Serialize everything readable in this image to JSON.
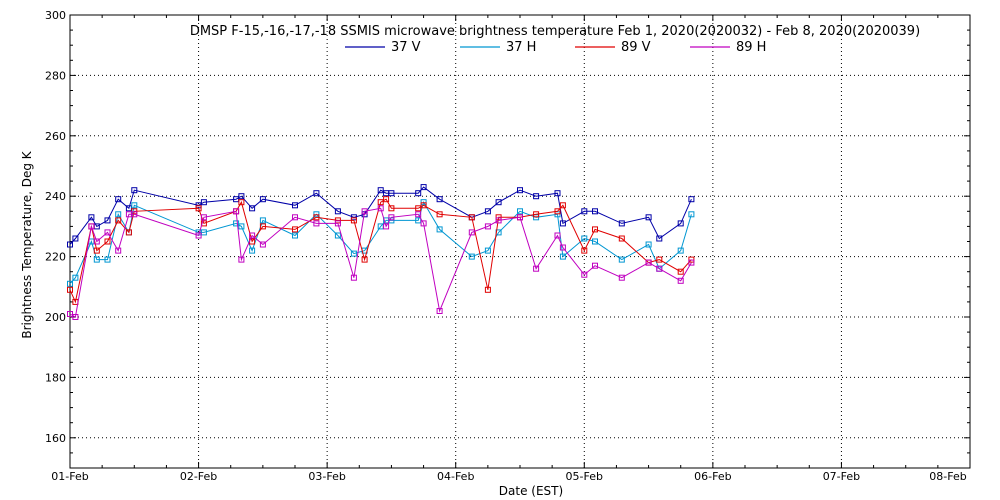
{
  "chart_data": {
    "type": "line",
    "title": "DMSP F-15,-16,-17,-18 SSMIS microwave brightness temperature Feb  1, 2020(2020032) - Feb  8, 2020(2020039)",
    "xlabel": "Date (EST)",
    "ylabel": "Brightness Temperature, Deg K",
    "xlim": [
      "2020-02-01",
      "2020-02-08"
    ],
    "ylim": [
      150,
      300
    ],
    "x_ticks": [
      "01-Feb",
      "02-Feb",
      "03-Feb",
      "04-Feb",
      "05-Feb",
      "06-Feb",
      "07-Feb",
      "08-Feb"
    ],
    "y_ticks": [
      160,
      180,
      200,
      220,
      240,
      260,
      280,
      300
    ],
    "grid": true,
    "legend": "top-center",
    "series": [
      {
        "name": "37 V",
        "color": "#0000a8",
        "x": [
          "2020-02-01 00:00",
          "2020-02-01 01:00",
          "2020-02-01 04:00",
          "2020-02-01 05:00",
          "2020-02-01 07:00",
          "2020-02-01 09:00",
          "2020-02-01 11:00",
          "2020-02-01 12:00",
          "2020-02-02 00:00",
          "2020-02-02 01:00",
          "2020-02-02 07:00",
          "2020-02-02 08:00",
          "2020-02-02 10:00",
          "2020-02-02 12:00",
          "2020-02-02 18:00",
          "2020-02-02 22:00",
          "2020-02-03 02:00",
          "2020-02-03 05:00",
          "2020-02-03 07:00",
          "2020-02-03 10:00",
          "2020-02-03 11:00",
          "2020-02-03 12:00",
          "2020-02-03 17:00",
          "2020-02-03 18:00",
          "2020-02-03 21:00",
          "2020-02-04 03:00",
          "2020-02-04 06:00",
          "2020-02-04 08:00",
          "2020-02-04 12:00",
          "2020-02-04 15:00",
          "2020-02-04 19:00",
          "2020-02-04 20:00",
          "2020-02-05 00:00",
          "2020-02-05 02:00",
          "2020-02-05 07:00",
          "2020-02-05 12:00",
          "2020-02-05 14:00",
          "2020-02-05 18:00",
          "2020-02-05 20:00"
        ],
        "y": [
          224,
          226,
          233,
          230,
          232,
          239,
          236,
          242,
          237,
          238,
          239,
          240,
          236,
          239,
          237,
          241,
          235,
          233,
          234,
          242,
          241,
          241,
          241,
          243,
          239,
          233,
          235,
          238,
          242,
          240,
          241,
          231,
          235,
          235,
          231,
          233,
          226,
          231,
          239
        ]
      },
      {
        "name": "37 H",
        "color": "#0096d2",
        "x": [
          "2020-02-01 00:00",
          "2020-02-01 01:00",
          "2020-02-01 04:00",
          "2020-02-01 05:00",
          "2020-02-01 07:00",
          "2020-02-01 09:00",
          "2020-02-01 11:00",
          "2020-02-01 12:00",
          "2020-02-02 00:00",
          "2020-02-02 01:00",
          "2020-02-02 07:00",
          "2020-02-02 08:00",
          "2020-02-02 10:00",
          "2020-02-02 12:00",
          "2020-02-02 18:00",
          "2020-02-02 22:00",
          "2020-02-03 02:00",
          "2020-02-03 05:00",
          "2020-02-03 07:00",
          "2020-02-03 10:00",
          "2020-02-03 11:00",
          "2020-02-03 12:00",
          "2020-02-03 17:00",
          "2020-02-03 18:00",
          "2020-02-03 21:00",
          "2020-02-04 03:00",
          "2020-02-04 06:00",
          "2020-02-04 08:00",
          "2020-02-04 12:00",
          "2020-02-04 15:00",
          "2020-02-04 19:00",
          "2020-02-04 20:00",
          "2020-02-05 00:00",
          "2020-02-05 02:00",
          "2020-02-05 07:00",
          "2020-02-05 12:00",
          "2020-02-05 14:00",
          "2020-02-05 18:00",
          "2020-02-05 20:00"
        ],
        "y": [
          211,
          213,
          225,
          219,
          219,
          234,
          228,
          237,
          228,
          228,
          231,
          230,
          222,
          232,
          227,
          234,
          227,
          221,
          222,
          230,
          232,
          232,
          232,
          238,
          229,
          220,
          222,
          228,
          235,
          233,
          234,
          220,
          226,
          225,
          219,
          224,
          216,
          222,
          234
        ]
      },
      {
        "name": "89 V",
        "color": "#e00000",
        "x": [
          "2020-02-01 00:00",
          "2020-02-01 01:00",
          "2020-02-01 04:00",
          "2020-02-01 05:00",
          "2020-02-01 07:00",
          "2020-02-01 09:00",
          "2020-02-01 11:00",
          "2020-02-01 12:00",
          "2020-02-02 00:00",
          "2020-02-02 01:00",
          "2020-02-02 07:00",
          "2020-02-02 08:00",
          "2020-02-02 10:00",
          "2020-02-02 12:00",
          "2020-02-02 18:00",
          "2020-02-02 22:00",
          "2020-02-03 02:00",
          "2020-02-03 05:00",
          "2020-02-03 07:00",
          "2020-02-03 10:00",
          "2020-02-03 11:00",
          "2020-02-03 12:00",
          "2020-02-03 17:00",
          "2020-02-03 18:00",
          "2020-02-03 21:00",
          "2020-02-04 03:00",
          "2020-02-04 06:00",
          "2020-02-04 08:00",
          "2020-02-04 12:00",
          "2020-02-04 15:00",
          "2020-02-04 19:00",
          "2020-02-04 20:00",
          "2020-02-05 00:00",
          "2020-02-05 02:00",
          "2020-02-05 07:00",
          "2020-02-05 12:00",
          "2020-02-05 14:00",
          "2020-02-05 18:00",
          "2020-02-05 20:00"
        ],
        "y": [
          209,
          205,
          230,
          222,
          225,
          232,
          228,
          235,
          236,
          231,
          235,
          238,
          225,
          230,
          229,
          233,
          232,
          232,
          219,
          238,
          239,
          236,
          236,
          237,
          234,
          233,
          209,
          233,
          233,
          234,
          235,
          237,
          222,
          229,
          226,
          218,
          219,
          215,
          219
        ]
      },
      {
        "name": "89 H",
        "color": "#c000c0",
        "x": [
          "2020-02-01 00:00",
          "2020-02-01 01:00",
          "2020-02-01 04:00",
          "2020-02-01 05:00",
          "2020-02-01 07:00",
          "2020-02-01 09:00",
          "2020-02-01 11:00",
          "2020-02-01 12:00",
          "2020-02-02 00:00",
          "2020-02-02 01:00",
          "2020-02-02 07:00",
          "2020-02-02 08:00",
          "2020-02-02 10:00",
          "2020-02-02 12:00",
          "2020-02-02 18:00",
          "2020-02-02 22:00",
          "2020-02-03 02:00",
          "2020-02-03 05:00",
          "2020-02-03 07:00",
          "2020-02-03 10:00",
          "2020-02-03 11:00",
          "2020-02-03 12:00",
          "2020-02-03 17:00",
          "2020-02-03 18:00",
          "2020-02-03 21:00",
          "2020-02-04 03:00",
          "2020-02-04 06:00",
          "2020-02-04 08:00",
          "2020-02-04 12:00",
          "2020-02-04 15:00",
          "2020-02-04 19:00",
          "2020-02-04 20:00",
          "2020-02-05 00:00",
          "2020-02-05 02:00",
          "2020-02-05 07:00",
          "2020-02-05 12:00",
          "2020-02-05 14:00",
          "2020-02-05 18:00",
          "2020-02-05 20:00"
        ],
        "y": [
          201,
          200,
          230,
          225,
          228,
          222,
          234,
          234,
          227,
          233,
          235,
          219,
          227,
          224,
          233,
          231,
          231,
          213,
          235,
          236,
          230,
          233,
          234,
          231,
          202,
          228,
          230,
          232,
          233,
          216,
          227,
          223,
          214,
          217,
          213,
          218,
          216,
          212,
          218
        ]
      }
    ]
  }
}
